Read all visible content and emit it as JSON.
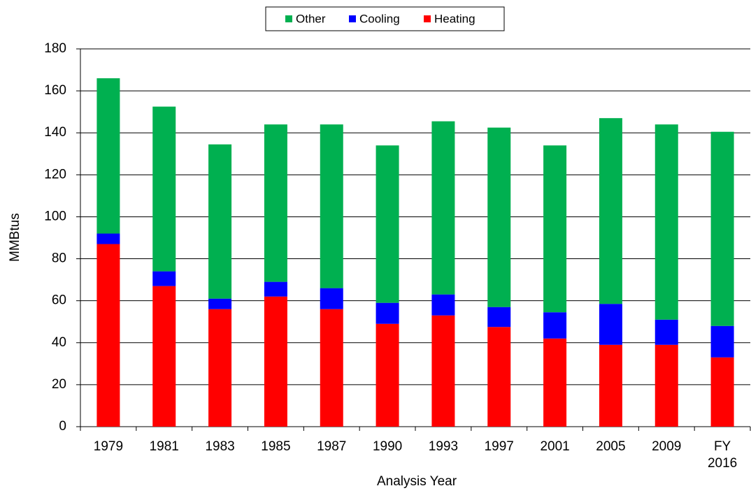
{
  "chart_data": {
    "type": "stacked_bar",
    "x_label": "Analysis Year",
    "y_label": "MMBtus",
    "categories": [
      "1979",
      "1981",
      "1983",
      "1985",
      "1987",
      "1990",
      "1993",
      "1997",
      "2001",
      "2005",
      "2009",
      "FY 2016"
    ],
    "series": [
      {
        "name": "Heating",
        "color": "#ff0000",
        "values": [
          87,
          67,
          56,
          62,
          56,
          49,
          53,
          47.5,
          42,
          39,
          39,
          33
        ]
      },
      {
        "name": "Cooling",
        "color": "#0000ff",
        "values": [
          5,
          7,
          5,
          7,
          10,
          10,
          10,
          9.5,
          12.5,
          19.5,
          12,
          15
        ]
      },
      {
        "name": "Other",
        "color": "#00b050",
        "values": [
          74,
          78.5,
          73.5,
          75,
          78,
          75,
          82.5,
          85.5,
          79.5,
          88.5,
          93,
          92.5
        ]
      }
    ],
    "ylim": [
      0,
      180
    ],
    "yticks": [
      0,
      20,
      40,
      60,
      80,
      100,
      120,
      140,
      160,
      180
    ],
    "grid": true,
    "legend": "top"
  }
}
